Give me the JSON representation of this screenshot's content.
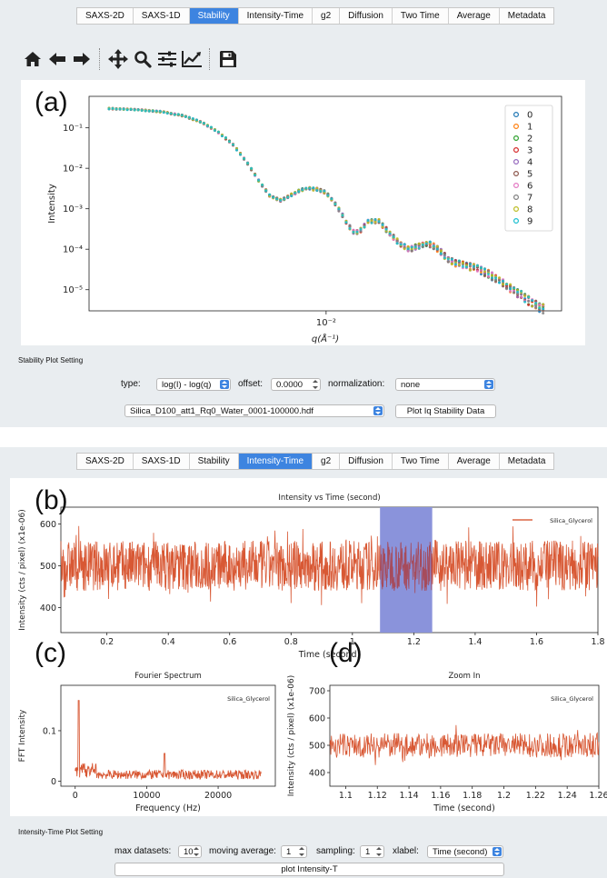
{
  "tabs": [
    "SAXS-2D",
    "SAXS-1D",
    "Stability",
    "Intensity-Time",
    "g2",
    "Diffusion",
    "Two Time",
    "Average",
    "Metadata"
  ],
  "top_active_tab": "Stability",
  "bottom_active_tab": "Intensity-Time",
  "toolbar": {
    "icons": [
      "home-icon",
      "back-arrow-icon",
      "forward-arrow-icon",
      "pan-icon",
      "zoom-icon",
      "configure-subplots-icon",
      "edit-axis-icon",
      "save-icon"
    ]
  },
  "panel_labels": {
    "a": "(a)",
    "b": "(b)",
    "c": "(c)",
    "d": "(d)"
  },
  "stability": {
    "setting_title": "Stability Plot Setting",
    "type_label": "type:",
    "type_value": "log(I) - log(q)",
    "offset_label": "offset:",
    "offset_value": "0.0000",
    "normalization_label": "normalization:",
    "normalization_value": "none",
    "file_value": "Silica_D100_att1_Rq0_Water_0001-100000.hdf",
    "plot_button": "Plot Iq Stability Data"
  },
  "intensity_time": {
    "setting_title": "Intensity-Time Plot Setting",
    "max_datasets_label": "max datasets:",
    "max_datasets_value": "10",
    "moving_average_label": "moving average:",
    "moving_average_value": "1",
    "sampling_label": "sampling:",
    "sampling_value": "1",
    "xlabel_label": "xlabel:",
    "xlabel_value": "Time (second)",
    "plot_button": "plot Intensity-T"
  },
  "chart_data": [
    {
      "id": "a",
      "type": "scatter",
      "title": "",
      "xlabel": "q(Å⁻¹)",
      "ylabel": "Intensity",
      "xscale": "log",
      "yscale": "log",
      "xlim": [
        0.0022,
        0.045
      ],
      "ylim": [
        3e-06,
        0.6
      ],
      "x_ticks": [
        {
          "value": 0.01,
          "label": "10⁻²"
        }
      ],
      "y_ticks": [
        {
          "value": 0.1,
          "label": "10⁻¹"
        },
        {
          "value": 0.01,
          "label": "10⁻²"
        },
        {
          "value": 0.001,
          "label": "10⁻³"
        },
        {
          "value": 0.0001,
          "label": "10⁻⁴"
        },
        {
          "value": 1e-05,
          "label": "10⁻⁵"
        }
      ],
      "legend": [
        "0",
        "1",
        "2",
        "3",
        "4",
        "5",
        "6",
        "7",
        "8",
        "9"
      ],
      "legend_position": "top-right",
      "legend_colors": [
        "#1f77b4",
        "#ff7f0e",
        "#2ca02c",
        "#d62728",
        "#9467bd",
        "#8c564b",
        "#e377c2",
        "#7f7f7f",
        "#bcbd22",
        "#17becf"
      ],
      "profile": {
        "x": [
          0.0025,
          0.003,
          0.0035,
          0.004,
          0.0045,
          0.005,
          0.0055,
          0.006,
          0.0065,
          0.007,
          0.0075,
          0.008,
          0.0085,
          0.009,
          0.0095,
          0.01,
          0.0105,
          0.011,
          0.0115,
          0.012,
          0.0125,
          0.013,
          0.014,
          0.015,
          0.016,
          0.017,
          0.018,
          0.019,
          0.02,
          0.021,
          0.022,
          0.023,
          0.024,
          0.025,
          0.026,
          0.027,
          0.028,
          0.03,
          0.032,
          0.034,
          0.036,
          0.038,
          0.04
        ],
        "y": [
          0.3,
          0.28,
          0.25,
          0.2,
          0.14,
          0.08,
          0.04,
          0.015,
          0.005,
          0.002,
          0.0016,
          0.0022,
          0.0029,
          0.0032,
          0.003,
          0.0025,
          0.0015,
          0.0008,
          0.0004,
          0.00025,
          0.0003,
          0.00048,
          0.0005,
          0.00025,
          0.00014,
          0.0001,
          0.00012,
          0.00014,
          0.00012,
          8e-05,
          5.5e-05,
          4.5e-05,
          4.2e-05,
          3.8e-05,
          3.5e-05,
          3e-05,
          2.6e-05,
          1.8e-05,
          1.2e-05,
          8.5e-06,
          6e-06,
          4.5e-06,
          3.5e-06
        ]
      }
    },
    {
      "id": "b",
      "type": "line",
      "title": "Intensity vs Time (second)",
      "xlabel": "Time (second)",
      "ylabel": "Intensity (cts / pixel) (x1e-06)",
      "xlim": [
        0.05,
        1.8
      ],
      "ylim": [
        340,
        640
      ],
      "x_ticks": [
        0.2,
        0.4,
        0.6,
        0.8,
        1,
        1.2,
        1.4,
        1.6,
        1.8
      ],
      "y_ticks": [
        400,
        500,
        600
      ],
      "series": [
        {
          "name": "Silica_Glycerol",
          "color": "#d4461e",
          "mean": 500,
          "spread": 60
        }
      ],
      "highlight_region": [
        1.09,
        1.26
      ],
      "legend_position": "top-right"
    },
    {
      "id": "c",
      "type": "line",
      "title": "Fourier Spectrum",
      "xlabel": "Frequency (Hz)",
      "ylabel": "FFT Intensity",
      "xlim": [
        -2000,
        28000
      ],
      "ylim": [
        -0.01,
        0.19
      ],
      "x_ticks": [
        0,
        10000,
        20000
      ],
      "y_ticks": [
        0,
        0.1
      ],
      "series": [
        {
          "name": "Silica_Glycerol",
          "color": "#d4461e"
        }
      ],
      "peaks": [
        {
          "x": 500,
          "y": 0.16
        },
        {
          "x": 12500,
          "y": 0.055
        }
      ],
      "legend_position": "top-right"
    },
    {
      "id": "d",
      "type": "line",
      "title": "Zoom In",
      "xlabel": "Time (second)",
      "ylabel": "Intensity (cts / pixel) (x1e-06)",
      "xlim": [
        1.09,
        1.26
      ],
      "ylim": [
        350,
        720
      ],
      "x_ticks": [
        1.1,
        1.12,
        1.14,
        1.16,
        1.18,
        1.2,
        1.22,
        1.24,
        1.26
      ],
      "x_tick_labels": [
        "1.1",
        "1.12",
        "1.14",
        "1.16",
        "1.18",
        "1.2",
        "1.22",
        "1.24",
        "1.26"
      ],
      "y_ticks": [
        400,
        500,
        600,
        700
      ],
      "series": [
        {
          "name": "Silica_Glycerol",
          "color": "#d4461e",
          "mean": 500,
          "spread": 45
        }
      ],
      "legend_position": "top-right"
    }
  ]
}
